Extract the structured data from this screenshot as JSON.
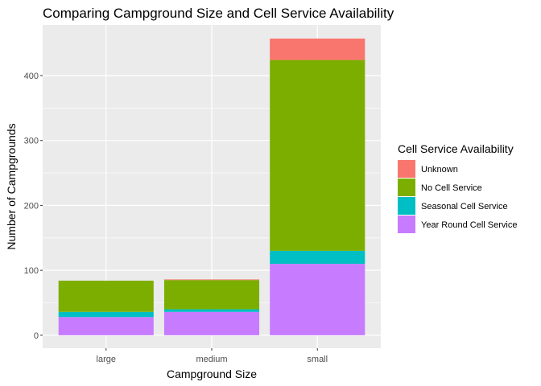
{
  "chart_data": {
    "type": "bar",
    "stacked": true,
    "title": "Comparing Campground Size and Cell Service Availability",
    "xlabel": "Campground Size",
    "ylabel": "Number of Campgrounds",
    "categories": [
      "large",
      "medium",
      "small"
    ],
    "ylim": [
      0,
      470
    ],
    "yticks": [
      0,
      100,
      200,
      300,
      400
    ],
    "grid": true,
    "legend_position": "right",
    "legend_title": "Cell Service Availability",
    "legend_order": [
      "Unknown",
      "No Cell Service",
      "Seasonal Cell Service",
      "Year Round Cell Service"
    ],
    "series": [
      {
        "name": "Year Round Cell Service",
        "color": "#C77CFF",
        "values": [
          28,
          36,
          110
        ]
      },
      {
        "name": "Seasonal Cell Service",
        "color": "#00BFC4",
        "values": [
          8,
          4,
          20
        ]
      },
      {
        "name": "No Cell Service",
        "color": "#7CAE00",
        "values": [
          48,
          45,
          294
        ]
      },
      {
        "name": "Unknown",
        "color": "#F8766D",
        "values": [
          0,
          1,
          33
        ]
      }
    ]
  }
}
